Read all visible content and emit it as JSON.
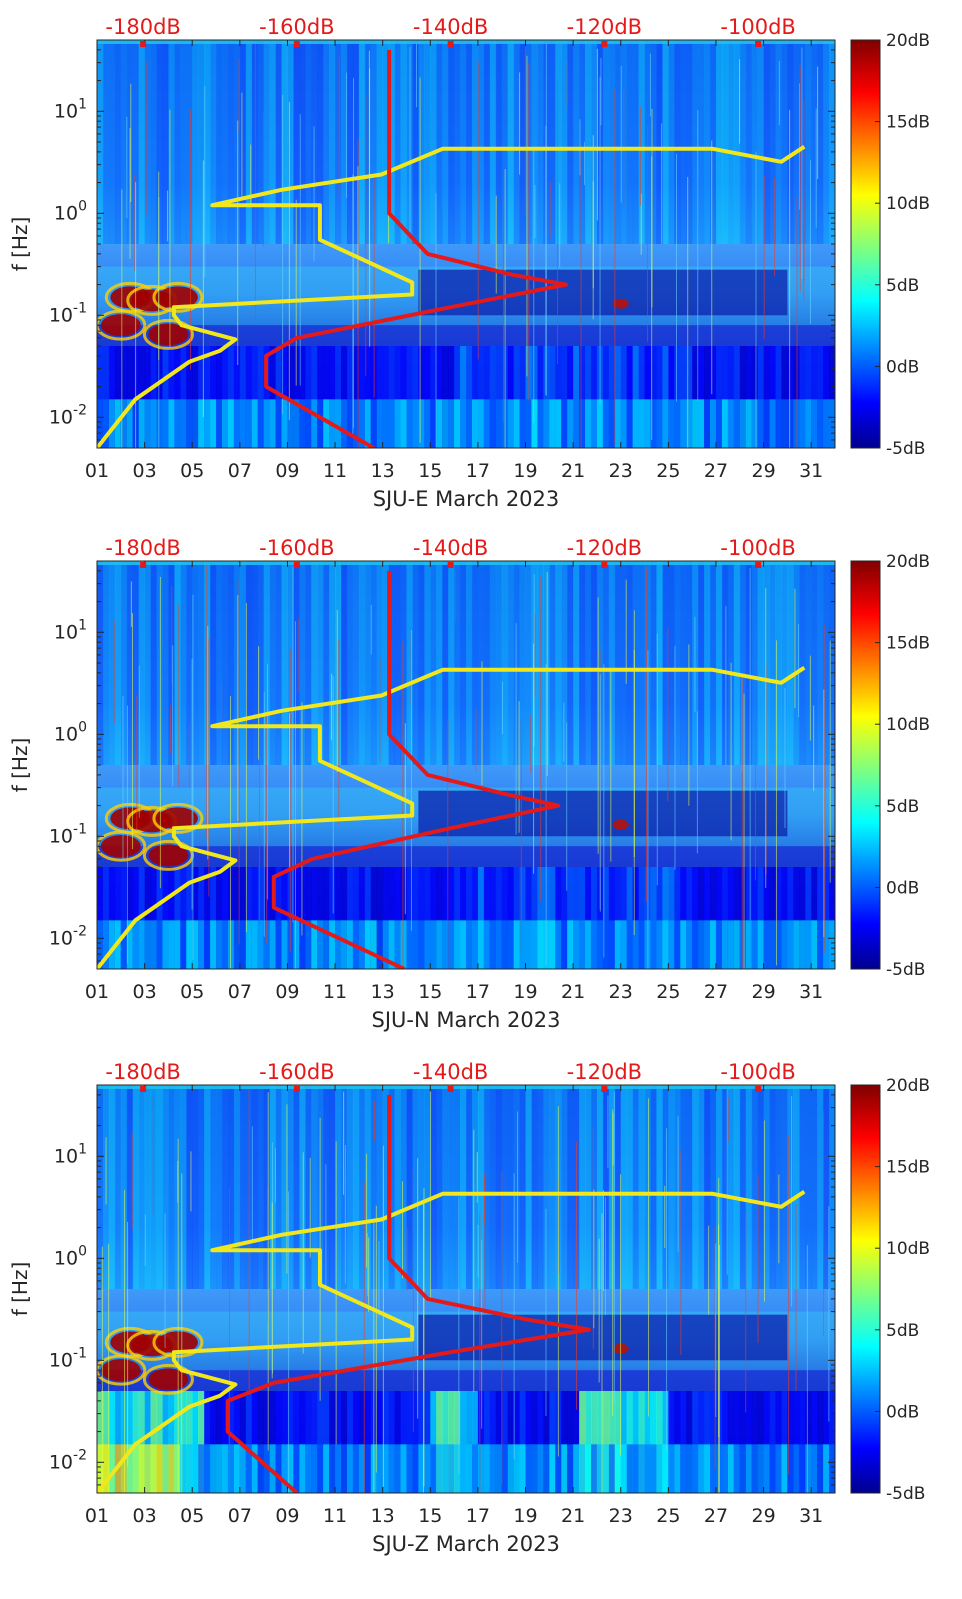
{
  "chart_data": [
    {
      "type": "heatmap",
      "xlabel": "SJU-E March 2023",
      "ylabel": "f [Hz]",
      "x_ticks": [
        "01",
        "03",
        "05",
        "07",
        "09",
        "11",
        "13",
        "15",
        "17",
        "19",
        "21",
        "23",
        "25",
        "27",
        "29",
        "31"
      ],
      "y_ticks": [
        "10-2",
        "10-1",
        "100",
        "101"
      ],
      "xlim": [
        1,
        32
      ],
      "ylim_hz": [
        0.005,
        50
      ],
      "yscale": "log",
      "top_axis_ticks": [
        "-180dB",
        "-160dB",
        "-140dB",
        "-120dB",
        "-100dB"
      ],
      "top_axis_range_db": [
        -186,
        -90
      ],
      "colorbar": {
        "ticks": [
          "20dB",
          "15dB",
          "10dB",
          "5dB",
          "0dB",
          "-5dB"
        ],
        "range_db": [
          -5,
          20
        ],
        "colormap": "jet"
      },
      "lines": [
        {
          "color": "#f0e81c",
          "top_axis_db": [
            -193,
            -186,
            -181,
            -174,
            -170,
            -168,
            -175,
            -176,
            -176,
            -145,
            -145,
            -157,
            -157,
            -171,
            -162,
            -149,
            -141,
            -133,
            -132,
            -121,
            -117,
            -111,
            -106,
            -97,
            -94
          ],
          "freq_hz": [
            0.0015,
            0.005,
            0.015,
            0.035,
            0.045,
            0.058,
            0.08,
            0.1,
            0.12,
            0.16,
            0.21,
            0.55,
            1.2,
            1.2,
            1.7,
            2.4,
            4.3,
            4.3,
            4.3,
            4.3,
            4.3,
            4.3,
            4.3,
            3.2,
            4.5
          ]
        },
        {
          "color": "#e41a1a",
          "top_axis_db": [
            -150,
            -164,
            -164,
            -160,
            -140,
            -125,
            -132,
            -143,
            -148,
            -148,
            -148,
            -148,
            -148
          ],
          "freq_hz": [
            0.005,
            0.02,
            0.04,
            0.06,
            0.12,
            0.2,
            0.25,
            0.4,
            1.0,
            2.5,
            5.0,
            15,
            40
          ]
        }
      ]
    },
    {
      "type": "heatmap",
      "xlabel": "SJU-N March 2023",
      "ylabel": "f [Hz]",
      "x_ticks": [
        "01",
        "03",
        "05",
        "07",
        "09",
        "11",
        "13",
        "15",
        "17",
        "19",
        "21",
        "23",
        "25",
        "27",
        "29",
        "31"
      ],
      "y_ticks": [
        "10-2",
        "10-1",
        "100",
        "101"
      ],
      "xlim": [
        1,
        32
      ],
      "ylim_hz": [
        0.005,
        50
      ],
      "yscale": "log",
      "top_axis_ticks": [
        "-180dB",
        "-160dB",
        "-140dB",
        "-120dB",
        "-100dB"
      ],
      "top_axis_range_db": [
        -186,
        -90
      ],
      "colorbar": {
        "ticks": [
          "20dB",
          "15dB",
          "10dB",
          "5dB",
          "0dB",
          "-5dB"
        ],
        "range_db": [
          -5,
          20
        ],
        "colormap": "jet"
      },
      "lines": [
        {
          "color": "#f0e81c",
          "top_axis_db": [
            -193,
            -186,
            -181,
            -174,
            -170,
            -168,
            -175,
            -176,
            -176,
            -145,
            -145,
            -157,
            -157,
            -171,
            -162,
            -149,
            -141,
            -133,
            -132,
            -121,
            -117,
            -111,
            -106,
            -97,
            -94
          ],
          "freq_hz": [
            0.0015,
            0.005,
            0.015,
            0.035,
            0.045,
            0.058,
            0.08,
            0.1,
            0.12,
            0.16,
            0.21,
            0.55,
            1.2,
            1.2,
            1.7,
            2.4,
            4.3,
            4.3,
            4.3,
            4.3,
            4.3,
            4.3,
            4.3,
            3.2,
            4.5
          ]
        },
        {
          "color": "#e41a1a",
          "top_axis_db": [
            -146,
            -163,
            -163,
            -158,
            -140,
            -126,
            -132,
            -143,
            -148,
            -148,
            -148,
            -148,
            -148
          ],
          "freq_hz": [
            0.005,
            0.02,
            0.04,
            0.06,
            0.12,
            0.2,
            0.25,
            0.4,
            1.0,
            2.5,
            5.0,
            15,
            40
          ]
        }
      ]
    },
    {
      "type": "heatmap",
      "xlabel": "SJU-Z March 2023",
      "ylabel": "f [Hz]",
      "x_ticks": [
        "01",
        "03",
        "05",
        "07",
        "09",
        "11",
        "13",
        "15",
        "17",
        "19",
        "21",
        "23",
        "25",
        "27",
        "29",
        "31"
      ],
      "y_ticks": [
        "10-2",
        "10-1",
        "100",
        "101"
      ],
      "xlim": [
        1,
        32
      ],
      "ylim_hz": [
        0.005,
        50
      ],
      "yscale": "log",
      "top_axis_ticks": [
        "-180dB",
        "-160dB",
        "-140dB",
        "-120dB",
        "-100dB"
      ],
      "top_axis_range_db": [
        -186,
        -90
      ],
      "colorbar": {
        "ticks": [
          "20dB",
          "15dB",
          "10dB",
          "5dB",
          "0dB",
          "-5dB"
        ],
        "range_db": [
          -5,
          20
        ],
        "colormap": "jet"
      },
      "lines": [
        {
          "color": "#f0e81c",
          "top_axis_db": [
            -193,
            -186,
            -181,
            -174,
            -170,
            -168,
            -175,
            -176,
            -176,
            -145,
            -145,
            -157,
            -157,
            -171,
            -162,
            -149,
            -141,
            -133,
            -132,
            -121,
            -117,
            -111,
            -106,
            -97,
            -94
          ],
          "freq_hz": [
            0.0015,
            0.005,
            0.015,
            0.035,
            0.045,
            0.058,
            0.08,
            0.1,
            0.12,
            0.16,
            0.21,
            0.55,
            1.2,
            1.2,
            1.7,
            2.4,
            4.3,
            4.3,
            4.3,
            4.3,
            4.3,
            4.3,
            4.3,
            3.2,
            4.5
          ]
        },
        {
          "color": "#e41a1a",
          "top_axis_db": [
            -160,
            -169,
            -169,
            -163,
            -140,
            -122,
            -130,
            -143,
            -148,
            -148,
            -148,
            -148,
            -148
          ],
          "freq_hz": [
            0.005,
            0.02,
            0.04,
            0.06,
            0.12,
            0.2,
            0.25,
            0.4,
            1.0,
            2.5,
            5.0,
            15,
            40
          ]
        }
      ]
    }
  ]
}
